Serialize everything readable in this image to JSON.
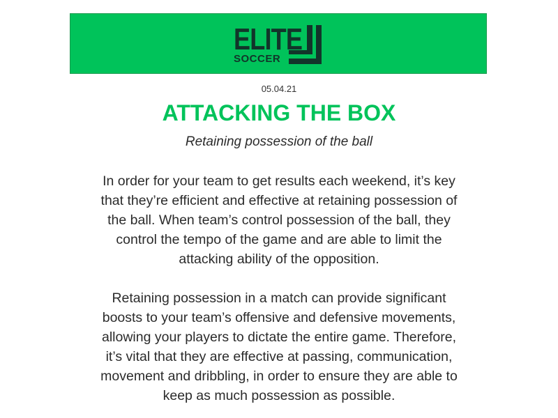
{
  "brand": {
    "logo_word": "ELITE",
    "logo_subword": "SOCCER",
    "accent_color": "#00c35a",
    "logo_color": "#12352a"
  },
  "article": {
    "date": "05.04.21",
    "title": "ATTACKING THE BOX",
    "subtitle": "Retaining possession of the ball",
    "paragraphs": [
      "In order for your team to get results each weekend, it’s key that they’re efficient and effective at retaining possession of the ball. When team’s control possession of the ball, they control the tempo of the game and are able to limit the attacking ability of the opposition.",
      "Retaining possession in a match can provide significant boosts to your team’s offensive and defensive movements, allowing your players to dictate the entire game. Therefore, it’s vital that they are effective at passing, communication, movement and dribbling, in order to ensure they are able to keep as much possession as possible."
    ]
  }
}
